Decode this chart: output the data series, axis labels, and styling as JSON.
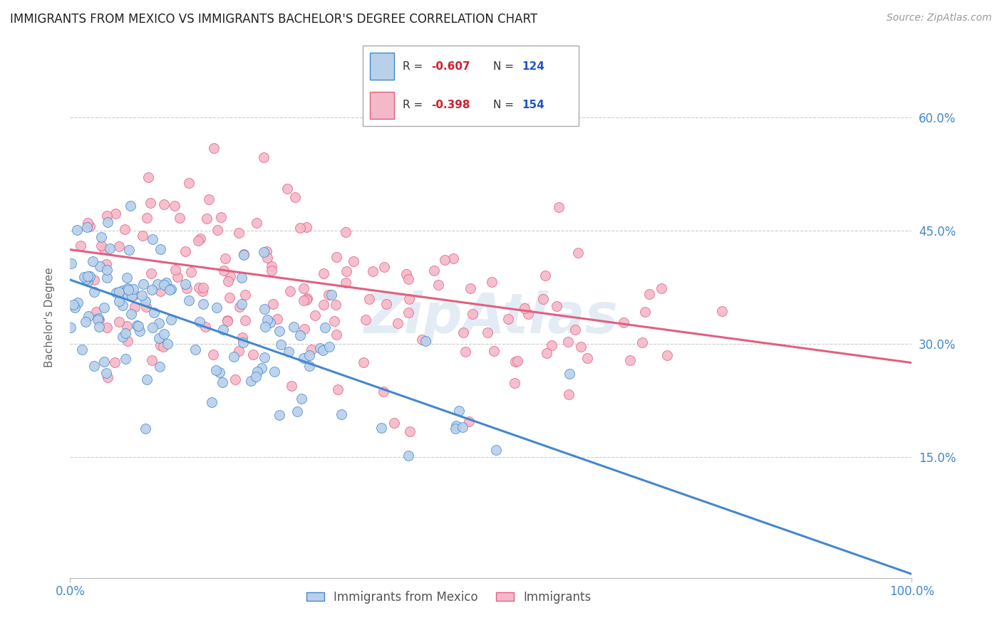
{
  "title": "IMMIGRANTS FROM MEXICO VS IMMIGRANTS BACHELOR'S DEGREE CORRELATION CHART",
  "source": "Source: ZipAtlas.com",
  "ylabel": "Bachelor's Degree",
  "watermark": "ZipAtlas",
  "xlim": [
    0.0,
    1.0
  ],
  "ylim": [
    -0.01,
    0.68
  ],
  "ytick_labels": [
    "15.0%",
    "30.0%",
    "45.0%",
    "60.0%"
  ],
  "ytick_values": [
    0.15,
    0.3,
    0.45,
    0.6
  ],
  "blue_R": -0.607,
  "blue_N": 124,
  "pink_R": -0.398,
  "pink_N": 154,
  "blue_color": "#b8d0ea",
  "pink_color": "#f5b8c8",
  "blue_line_color": "#4488cc",
  "pink_line_color": "#e06080",
  "title_color": "#222222",
  "tick_label_color": "#4488cc",
  "background_color": "#ffffff",
  "grid_color": "#cccccc",
  "blue_line_x0": 0.0,
  "blue_line_y0": 0.385,
  "blue_line_x1": 1.0,
  "blue_line_y1": -0.005,
  "pink_line_x0": 0.0,
  "pink_line_y0": 0.425,
  "pink_line_x1": 1.0,
  "pink_line_y1": 0.275
}
